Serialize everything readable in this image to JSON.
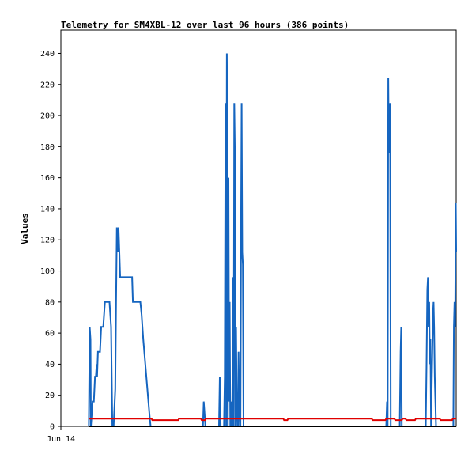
{
  "chart_data": {
    "type": "line",
    "title": "Telemetry for SM4XBL-12 over last 96 hours (386 points)",
    "xlabel": "",
    "ylabel": "Values",
    "x_tick_labels": [
      "Jun 14"
    ],
    "y_ticks": [
      0,
      20,
      40,
      60,
      80,
      100,
      120,
      140,
      160,
      180,
      200,
      220,
      240
    ],
    "ylim": [
      0,
      255
    ],
    "xlim": [
      0,
      96
    ],
    "grid": false,
    "legend": "none",
    "series": [
      {
        "color": "#1565c0",
        "points": [
          [
            6.8,
            0
          ],
          [
            7.0,
            64
          ],
          [
            7.2,
            56
          ],
          [
            7.3,
            0
          ],
          [
            7.5,
            8
          ],
          [
            7.7,
            16
          ],
          [
            8.0,
            16
          ],
          [
            8.3,
            32
          ],
          [
            8.5,
            32
          ],
          [
            8.7,
            40
          ],
          [
            8.8,
            32
          ],
          [
            9.0,
            48
          ],
          [
            9.5,
            48
          ],
          [
            9.8,
            64
          ],
          [
            10.3,
            64
          ],
          [
            10.7,
            80
          ],
          [
            11.8,
            80
          ],
          [
            12.2,
            64
          ],
          [
            12.5,
            0
          ],
          [
            12.8,
            0
          ],
          [
            13.2,
            24
          ],
          [
            13.4,
            80
          ],
          [
            13.6,
            128
          ],
          [
            13.8,
            112
          ],
          [
            14.0,
            128
          ],
          [
            14.2,
            112
          ],
          [
            14.4,
            96
          ],
          [
            17.3,
            96
          ],
          [
            17.5,
            80
          ],
          [
            19.3,
            80
          ],
          [
            19.6,
            72
          ],
          [
            20.0,
            56
          ],
          [
            20.5,
            40
          ],
          [
            21.0,
            24
          ],
          [
            21.5,
            8
          ],
          [
            21.8,
            0
          ],
          [
            34.5,
            0
          ],
          [
            34.7,
            16
          ],
          [
            34.9,
            8
          ],
          [
            35.1,
            0
          ],
          [
            38.4,
            0
          ],
          [
            38.6,
            32
          ],
          [
            38.8,
            0
          ],
          [
            39.6,
            0
          ],
          [
            39.8,
            32
          ],
          [
            40.0,
            208
          ],
          [
            40.15,
            0
          ],
          [
            40.3,
            240
          ],
          [
            40.45,
            176
          ],
          [
            40.55,
            0
          ],
          [
            40.7,
            160
          ],
          [
            40.85,
            16
          ],
          [
            41.0,
            80
          ],
          [
            41.15,
            0
          ],
          [
            41.3,
            16
          ],
          [
            41.45,
            0
          ],
          [
            41.6,
            0
          ],
          [
            41.8,
            96
          ],
          [
            41.95,
            0
          ],
          [
            42.1,
            208
          ],
          [
            42.25,
            176
          ],
          [
            42.4,
            0
          ],
          [
            42.55,
            64
          ],
          [
            42.7,
            16
          ],
          [
            42.85,
            0
          ],
          [
            43.0,
            0
          ],
          [
            43.15,
            48
          ],
          [
            43.3,
            16
          ],
          [
            43.45,
            0
          ],
          [
            43.6,
            0
          ],
          [
            43.75,
            128
          ],
          [
            43.9,
            208
          ],
          [
            44.05,
            112
          ],
          [
            44.2,
            104
          ],
          [
            44.35,
            0
          ],
          [
            79.0,
            0
          ],
          [
            79.2,
            16
          ],
          [
            79.35,
            0
          ],
          [
            79.5,
            224
          ],
          [
            79.65,
            176
          ],
          [
            79.8,
            200
          ],
          [
            79.95,
            208
          ],
          [
            80.1,
            0
          ],
          [
            82.3,
            0
          ],
          [
            82.5,
            48
          ],
          [
            82.65,
            64
          ],
          [
            82.8,
            0
          ],
          [
            88.6,
            0
          ],
          [
            88.8,
            40
          ],
          [
            89.0,
            88
          ],
          [
            89.15,
            96
          ],
          [
            89.3,
            64
          ],
          [
            89.45,
            80
          ],
          [
            89.6,
            40
          ],
          [
            89.75,
            56
          ],
          [
            89.9,
            0
          ],
          [
            90.05,
            24
          ],
          [
            90.2,
            48
          ],
          [
            90.35,
            72
          ],
          [
            90.5,
            80
          ],
          [
            90.65,
            64
          ],
          [
            90.8,
            32
          ],
          [
            90.95,
            16
          ],
          [
            91.1,
            0
          ],
          [
            95.3,
            0
          ],
          [
            95.45,
            64
          ],
          [
            95.6,
            80
          ],
          [
            95.75,
            64
          ],
          [
            95.9,
            144
          ],
          [
            96.0,
            112
          ]
        ]
      },
      {
        "color": "#e00000",
        "points": [
          [
            6.8,
            5
          ],
          [
            22.0,
            5
          ],
          [
            22.2,
            4
          ],
          [
            28.5,
            4
          ],
          [
            28.7,
            5
          ],
          [
            34.0,
            5
          ],
          [
            34.2,
            4
          ],
          [
            35.0,
            4
          ],
          [
            35.2,
            5
          ],
          [
            54.0,
            5
          ],
          [
            54.2,
            4
          ],
          [
            55.0,
            4
          ],
          [
            55.2,
            5
          ],
          [
            75.5,
            5
          ],
          [
            75.7,
            4
          ],
          [
            78.8,
            4
          ],
          [
            79.0,
            5
          ],
          [
            81.0,
            5
          ],
          [
            81.2,
            4
          ],
          [
            82.8,
            4
          ],
          [
            83.0,
            5
          ],
          [
            83.7,
            5
          ],
          [
            83.9,
            4
          ],
          [
            86.0,
            4
          ],
          [
            86.2,
            5
          ],
          [
            92.0,
            5
          ],
          [
            92.2,
            4
          ],
          [
            95.0,
            4
          ],
          [
            95.2,
            5
          ],
          [
            96.0,
            5
          ]
        ]
      },
      {
        "color": "#000000",
        "points": [
          [
            6.8,
            0
          ],
          [
            96.0,
            0
          ]
        ]
      }
    ]
  }
}
